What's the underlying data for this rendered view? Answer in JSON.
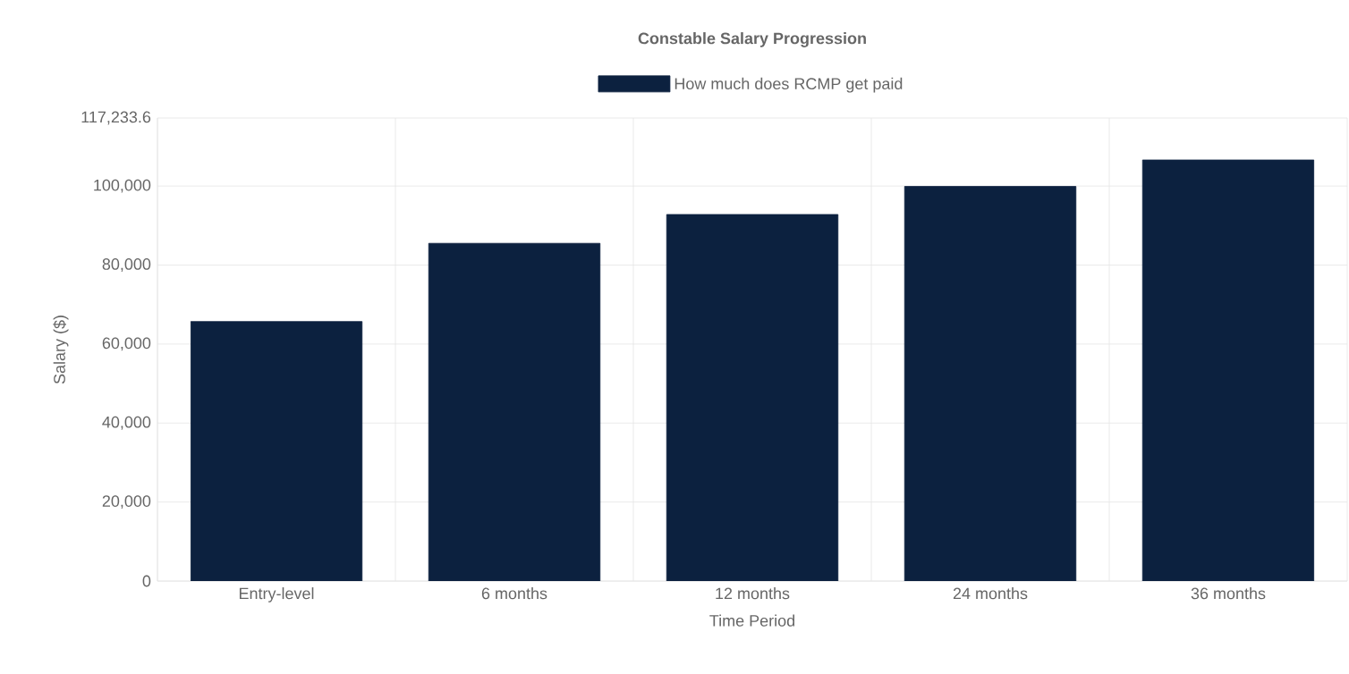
{
  "chart_data": {
    "type": "bar",
    "title": "Constable Salary Progression",
    "xlabel": "Time Period",
    "ylabel": "Salary ($)",
    "categories": [
      "Entry-level",
      "6 months",
      "12 months",
      "24 months",
      "36 months"
    ],
    "series": [
      {
        "name": "How much does RCMP get paid",
        "color": "#0c213f",
        "values": [
          65700,
          85500,
          92800,
          99900,
          106600
        ]
      }
    ],
    "ylim": [
      0,
      117233.6
    ],
    "yticks": [
      0,
      {
        "value": 20000,
        "label": "20,000"
      },
      {
        "value": 40000,
        "label": "40,000"
      },
      {
        "value": 60000,
        "label": "60,000"
      },
      {
        "value": 80000,
        "label": "80,000"
      },
      {
        "value": 100000,
        "label": "100,000"
      },
      {
        "value": 117233.6,
        "label": "117,233.6"
      }
    ],
    "grid": true,
    "legend": "top"
  }
}
